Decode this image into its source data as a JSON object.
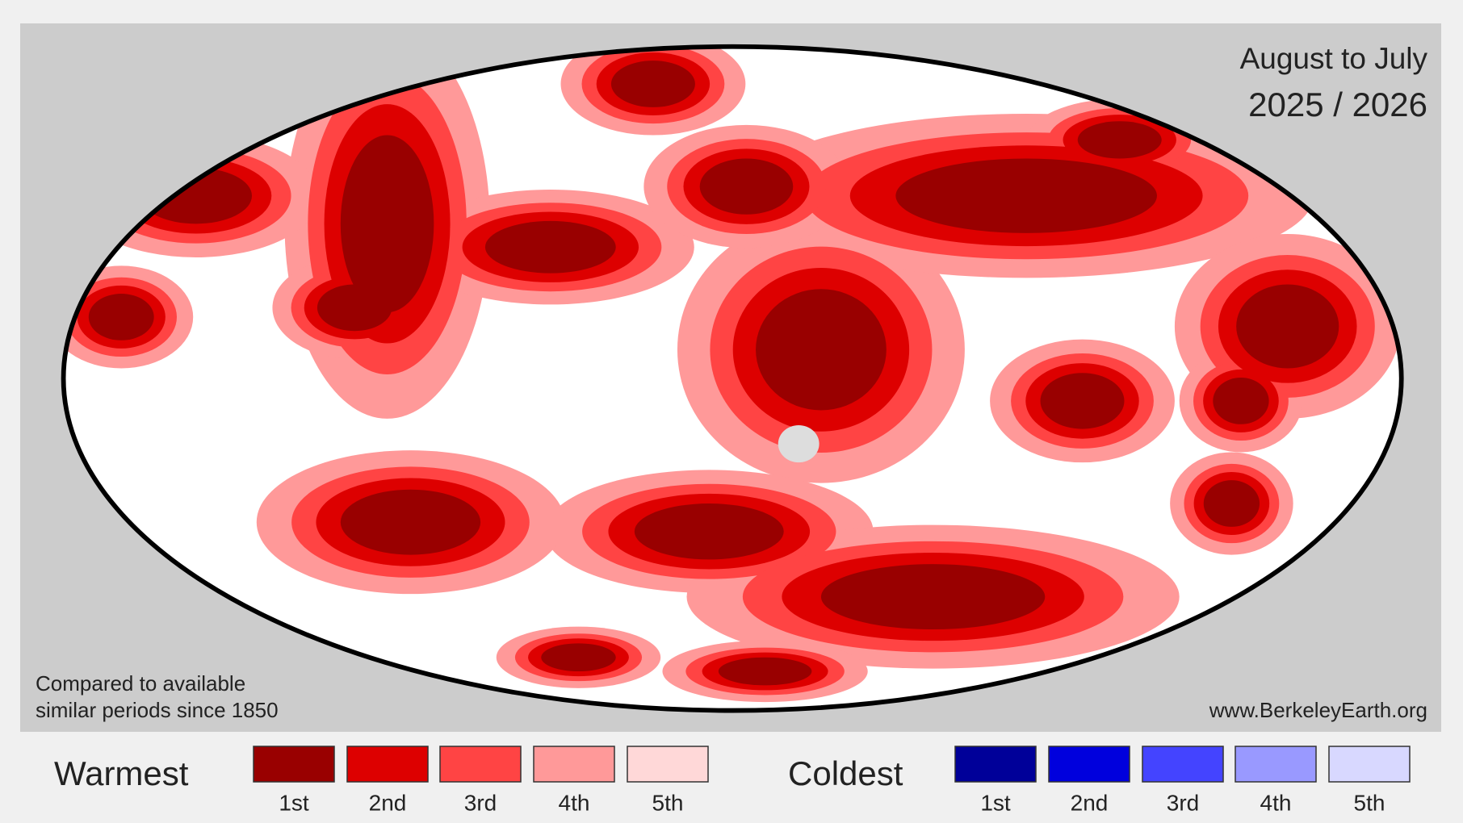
{
  "header": {
    "period": "August to July",
    "years": "2025 / 2026"
  },
  "note": [
    "Compared to available",
    "similar periods since 1850"
  ],
  "source": "www.BerkeleyEarth.org",
  "legend": {
    "warm": {
      "title": "Warmest",
      "items": [
        {
          "label": "1st",
          "color": "#990000"
        },
        {
          "label": "2nd",
          "color": "#dd0000"
        },
        {
          "label": "3rd",
          "color": "#ff4444"
        },
        {
          "label": "4th",
          "color": "#ff9999"
        },
        {
          "label": "5th",
          "color": "#ffd8d8"
        }
      ]
    },
    "cold": {
      "title": "Coldest",
      "items": [
        {
          "label": "1st",
          "color": "#000099"
        },
        {
          "label": "2nd",
          "color": "#0000dd"
        },
        {
          "label": "3rd",
          "color": "#4444ff"
        },
        {
          "label": "4th",
          "color": "#9999ff"
        },
        {
          "label": "5th",
          "color": "#d8d8ff"
        }
      ]
    }
  }
}
